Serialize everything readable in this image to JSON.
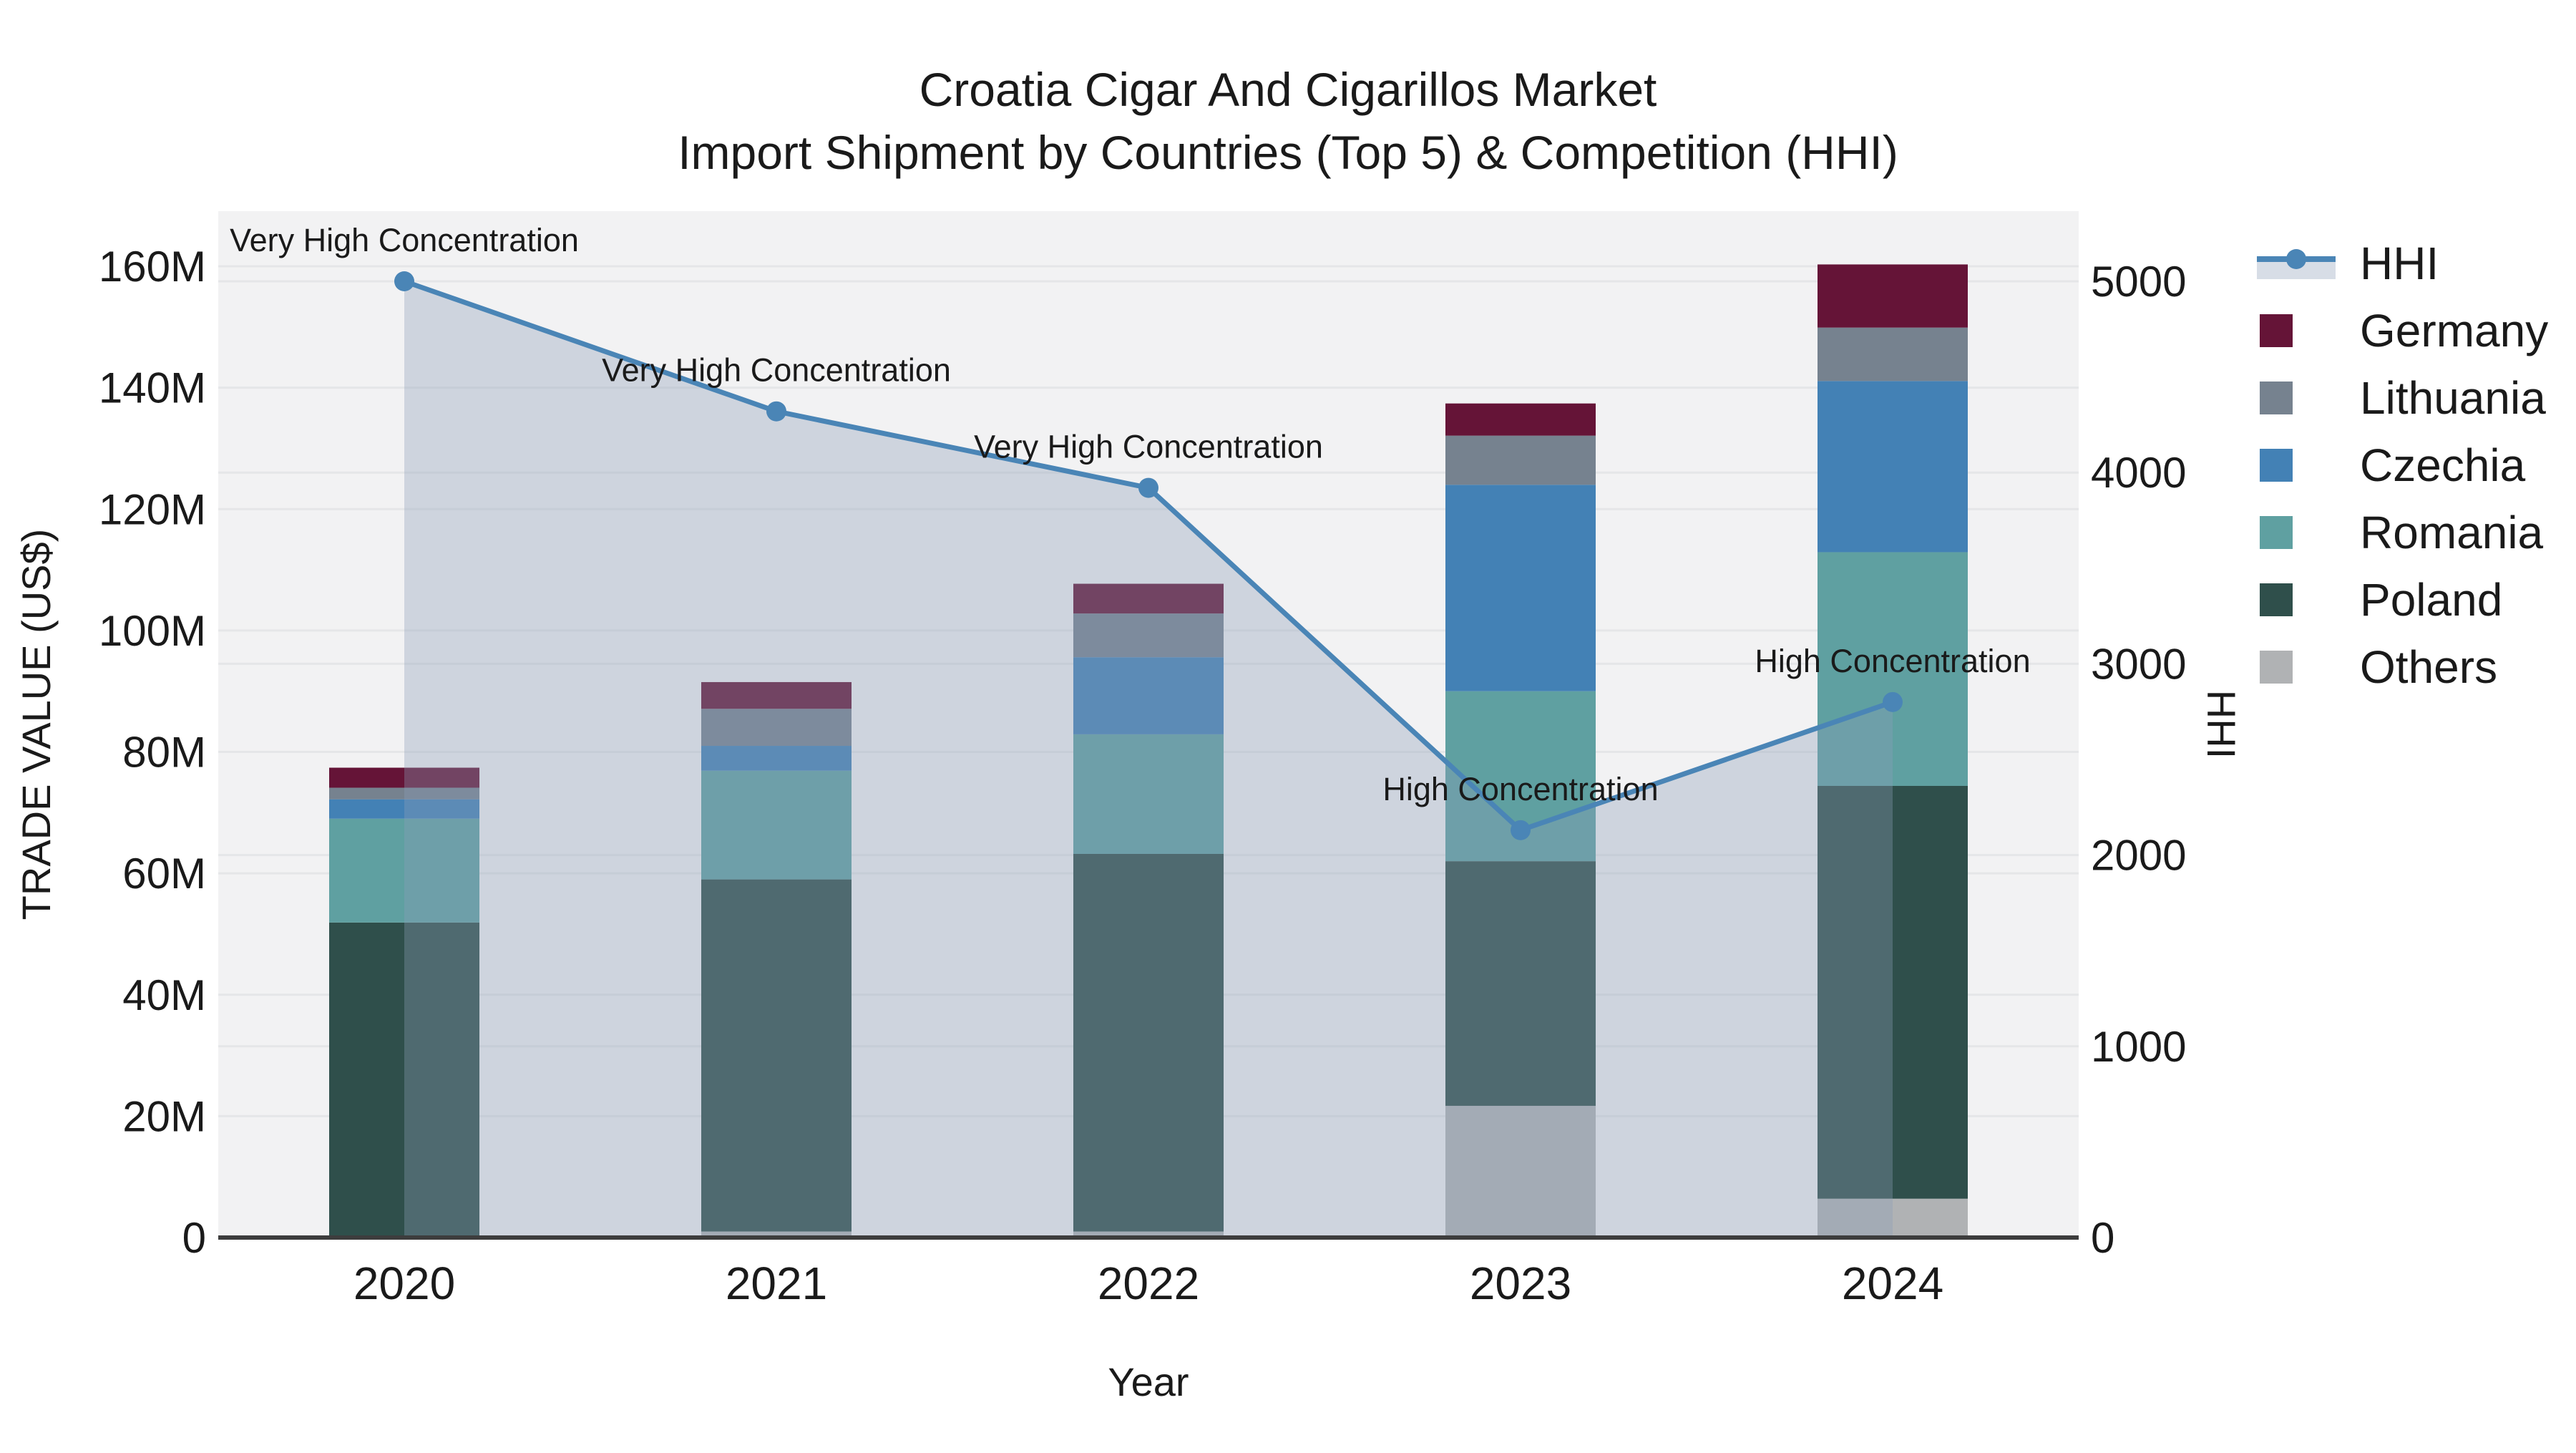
{
  "title": {
    "line1": "Croatia Cigar And Cigarillos Market",
    "line2": "Import Shipment by Countries (Top 5) & Competition (HHI)"
  },
  "axes": {
    "x": {
      "title": "Year",
      "categories": [
        "2020",
        "2021",
        "2022",
        "2023",
        "2024"
      ]
    },
    "y_left": {
      "title": "TRADE VALUE (US$)",
      "tick_labels": [
        "0",
        "20M",
        "40M",
        "60M",
        "80M",
        "100M",
        "120M",
        "140M",
        "160M"
      ],
      "tick_values": [
        0,
        20,
        40,
        60,
        80,
        100,
        120,
        140,
        160
      ]
    },
    "y_right": {
      "title": "HHI",
      "tick_labels": [
        "0",
        "1000",
        "2000",
        "3000",
        "4000",
        "5000"
      ],
      "tick_values": [
        0,
        1000,
        2000,
        3000,
        4000,
        5000
      ]
    }
  },
  "legend": {
    "items": [
      {
        "label": "HHI",
        "type": "line"
      },
      {
        "label": "Germany",
        "type": "swatch"
      },
      {
        "label": "Lithuania",
        "type": "swatch"
      },
      {
        "label": "Czechia",
        "type": "swatch"
      },
      {
        "label": "Romania",
        "type": "swatch"
      },
      {
        "label": "Poland",
        "type": "swatch"
      },
      {
        "label": "Others",
        "type": "swatch"
      }
    ]
  },
  "colors": {
    "Germany": "#651437",
    "Lithuania": "#76828F",
    "Czechia": "#4381B5",
    "Romania": "#5FA0A1",
    "Poland": "#2F4F4B",
    "Others": "#B0B2B4",
    "hhi_line": "#4A85B6",
    "hhi_fill": "rgba(140,158,182,0.35)",
    "plot_bg": "#F2F2F3",
    "grid": "#E5E6E8",
    "axis_line": "#3D3D3D",
    "text": "#1A1A1A"
  },
  "chart_data": {
    "type": "bar",
    "subtype": "stacked_bars_with_dual_axis_line_area",
    "title": "Croatia Cigar And Cigarillos Market — Import Shipment by Countries (Top 5) & Competition (HHI)",
    "categories": [
      "2020",
      "2021",
      "2022",
      "2023",
      "2024"
    ],
    "bar_unit": "US$ millions (left axis, trade value)",
    "stack_order_bottom_to_top": [
      "Others",
      "Poland",
      "Romania",
      "Czechia",
      "Lithuania",
      "Germany"
    ],
    "series": [
      {
        "name": "Germany",
        "values": [
          3.3,
          4.4,
          4.9,
          5.3,
          10.4
        ]
      },
      {
        "name": "Lithuania",
        "values": [
          1.9,
          6.1,
          7.2,
          8.1,
          8.8
        ]
      },
      {
        "name": "Czechia",
        "values": [
          3.2,
          4.1,
          12.7,
          34.0,
          28.2
        ]
      },
      {
        "name": "Romania",
        "values": [
          17.1,
          17.9,
          19.7,
          28.0,
          38.5
        ]
      },
      {
        "name": "Poland",
        "values": [
          51.9,
          58.0,
          62.2,
          40.3,
          68.0
        ]
      },
      {
        "name": "Others",
        "values": [
          0.0,
          1.0,
          1.0,
          21.7,
          6.4
        ]
      }
    ],
    "bar_totals": [
      77.4,
      91.5,
      107.7,
      137.4,
      160.3
    ],
    "line": {
      "name": "HHI",
      "axis": "right",
      "values": [
        5000,
        4320,
        3920,
        2130,
        2800
      ],
      "annotations": [
        "Very High Concentration",
        "Very High Concentration",
        "Very High Concentration",
        "High Concentration",
        "High Concentration"
      ]
    },
    "xlabel": "Year",
    "ylabel": "TRADE VALUE (US$)",
    "y2label": "HHI",
    "ylim_left": [
      0,
      169
    ],
    "ylim_right": [
      0,
      5360
    ],
    "grid": true,
    "legend_position": "right"
  }
}
